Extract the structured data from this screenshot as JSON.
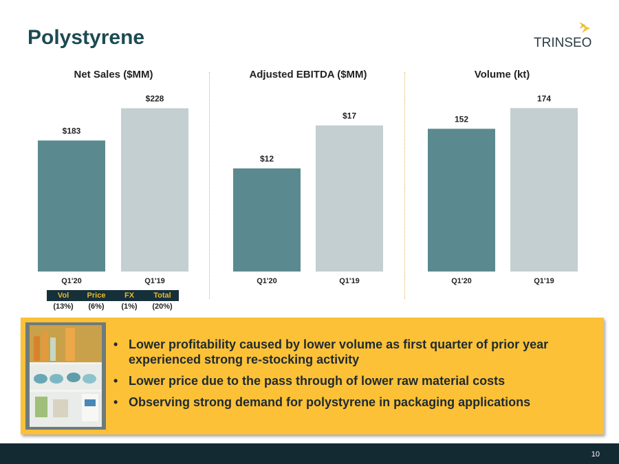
{
  "header": {
    "title": "Polystyrene",
    "logo_text": "TRINSEO"
  },
  "chart_data": [
    {
      "type": "bar",
      "title": "Net Sales ($MM)",
      "categories": [
        "Q1'20",
        "Q1'19"
      ],
      "values": [
        183,
        228
      ],
      "data_labels": [
        "$183",
        "$228"
      ],
      "ylim": [
        0,
        240
      ]
    },
    {
      "type": "bar",
      "title": "Adjusted EBITDA ($MM)",
      "categories": [
        "Q1'20",
        "Q1'19"
      ],
      "values": [
        12,
        17
      ],
      "data_labels": [
        "$12",
        "$17"
      ],
      "ylim": [
        0,
        20
      ]
    },
    {
      "type": "bar",
      "title": "Volume (kt)",
      "categories": [
        "Q1'20",
        "Q1'19"
      ],
      "values": [
        152,
        174
      ],
      "data_labels": [
        "152",
        "174"
      ],
      "ylim": [
        0,
        183
      ]
    }
  ],
  "colors": {
    "bar_current": "#5a8a8f",
    "bar_prior": "#c3cfd0",
    "callout": "#fcc137",
    "title": "#1c4a52",
    "footer": "#142a33"
  },
  "bridge": {
    "headers": [
      "Vol",
      "Price",
      "FX",
      "Total"
    ],
    "values": [
      "(13%)",
      "(6%)",
      "(1%)",
      "(20%)"
    ]
  },
  "callout": {
    "image": "refrigerator-photo",
    "bullets": [
      "Lower profitability caused by lower volume as first quarter of prior year experienced strong re-stocking activity",
      "Lower price due to the pass through of lower raw material costs",
      "Observing strong demand for polystyrene in packaging applications"
    ]
  },
  "footer": {
    "page_number": "10"
  }
}
